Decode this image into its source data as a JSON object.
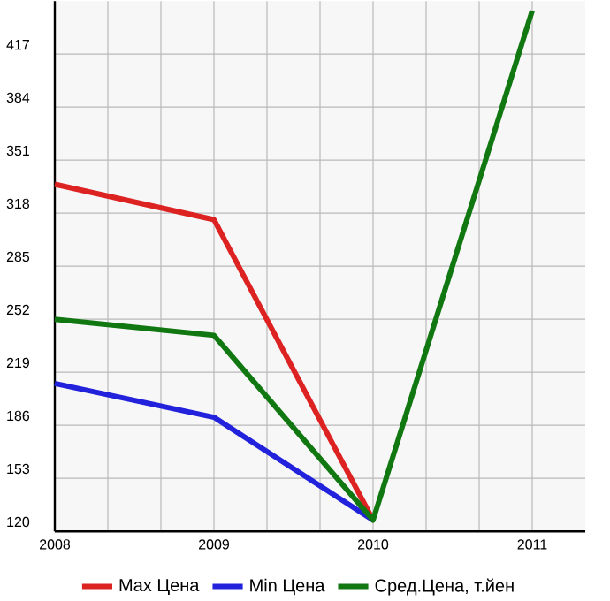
{
  "chart_data": {
    "type": "line",
    "categories": [
      "2008",
      "2009",
      "2010",
      "2011"
    ],
    "series": [
      {
        "name": "Max Цена",
        "color": "#dd2222",
        "values": [
          336,
          314,
          127,
          null
        ]
      },
      {
        "name": "Min Цена",
        "color": "#2222dd",
        "values": [
          212,
          191,
          127,
          null
        ]
      },
      {
        "name": "Сред.Цена, т.йен",
        "color": "#117711",
        "values": [
          252,
          242,
          127,
          444
        ]
      }
    ],
    "ylim": [
      120,
      450
    ],
    "yticks": [
      120,
      153,
      186,
      219,
      252,
      285,
      318,
      351,
      384,
      417
    ],
    "grid": true,
    "legend": "bottom",
    "marker": "none",
    "line_style": "solid"
  }
}
